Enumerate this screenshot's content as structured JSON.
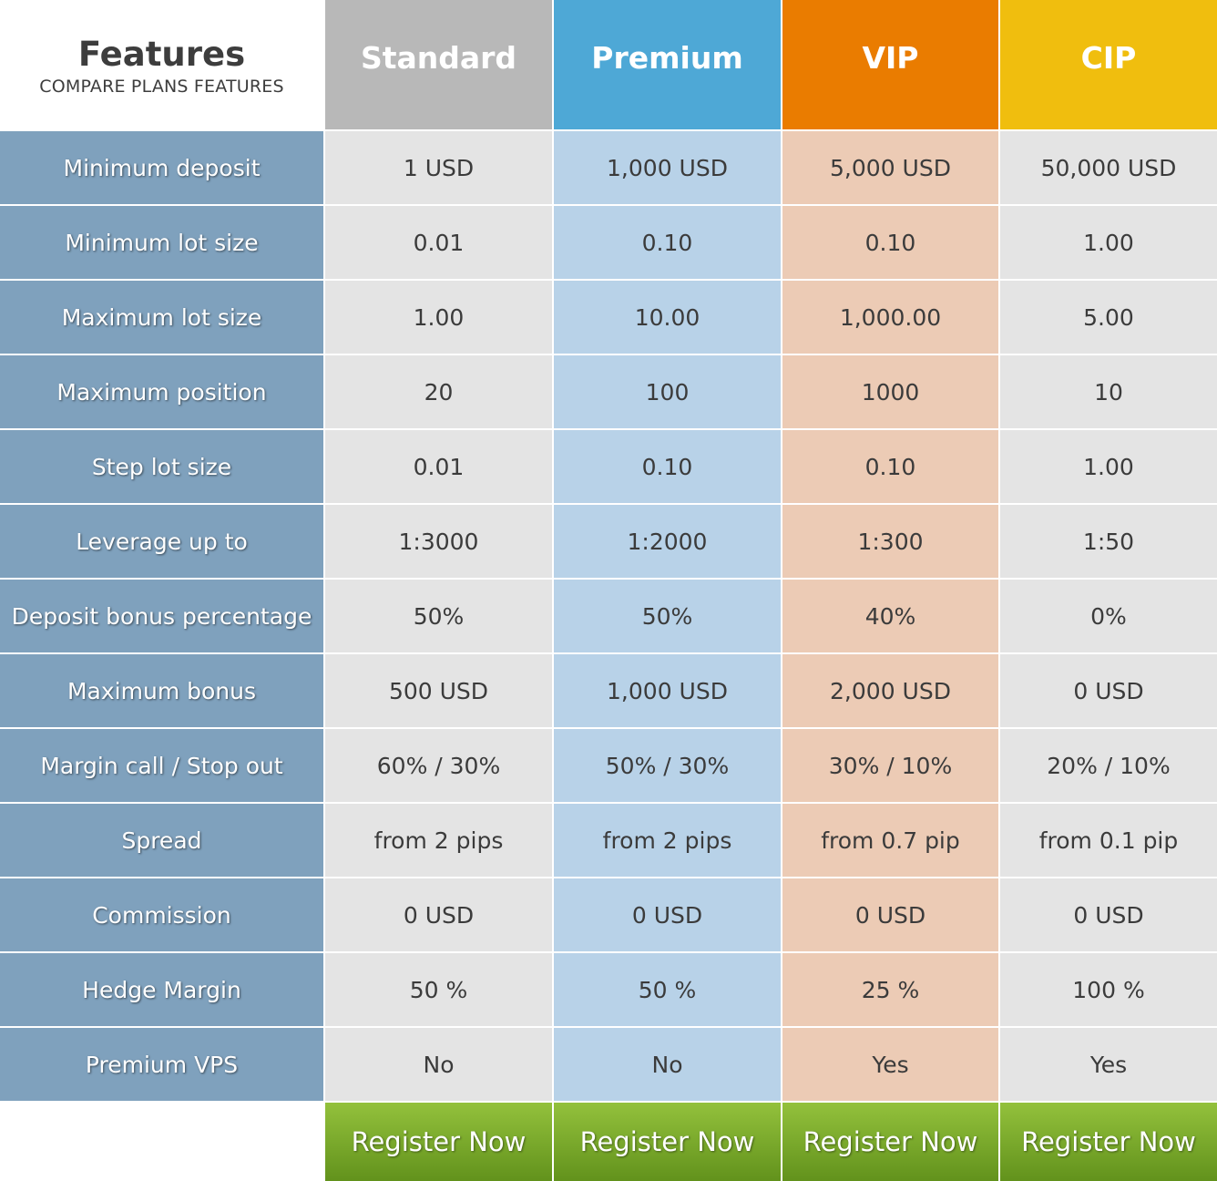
{
  "header": {
    "title": "Features",
    "subtitle": "COMPARE PLANS FEATURES",
    "plans": [
      "Standard",
      "Premium",
      "VIP",
      "CIP"
    ]
  },
  "colors": {
    "standard": "#b8b8b8",
    "premium": "#4ea8d6",
    "vip": "#ea7c00",
    "cip": "#f0be0e",
    "feature_column": "#7fa1bd",
    "register_button": "#7aad2c"
  },
  "rows": [
    {
      "feature": "Minimum deposit",
      "values": [
        "1 USD",
        "1,000 USD",
        "5,000 USD",
        "50,000 USD"
      ]
    },
    {
      "feature": "Minimum lot size",
      "values": [
        "0.01",
        "0.10",
        "0.10",
        "1.00"
      ]
    },
    {
      "feature": "Maximum lot size",
      "values": [
        "1.00",
        "10.00",
        "1,000.00",
        "5.00"
      ]
    },
    {
      "feature": "Maximum position",
      "values": [
        "20",
        "100",
        "1000",
        "10"
      ]
    },
    {
      "feature": "Step lot size",
      "values": [
        "0.01",
        "0.10",
        "0.10",
        "1.00"
      ]
    },
    {
      "feature": "Leverage up to",
      "values": [
        "1:3000",
        "1:2000",
        "1:300",
        "1:50"
      ]
    },
    {
      "feature": "Deposit bonus percentage",
      "values": [
        "50%",
        "50%",
        "40%",
        "0%"
      ]
    },
    {
      "feature": "Maximum bonus",
      "values": [
        "500 USD",
        "1,000 USD",
        "2,000 USD",
        "0 USD"
      ]
    },
    {
      "feature": "Margin call / Stop out",
      "values": [
        "60% / 30%",
        "50% / 30%",
        "30% / 10%",
        "20% / 10%"
      ]
    },
    {
      "feature": "Spread",
      "values": [
        "from 2 pips",
        "from 2 pips",
        "from 0.7 pip",
        "from 0.1 pip"
      ]
    },
    {
      "feature": "Commission",
      "values": [
        "0 USD",
        "0 USD",
        "0 USD",
        "0 USD"
      ]
    },
    {
      "feature": "Hedge Margin",
      "values": [
        "50 %",
        "50 %",
        "25 %",
        "100 %"
      ]
    },
    {
      "feature": "Premium VPS",
      "values": [
        "No",
        "No",
        "Yes",
        "Yes"
      ]
    }
  ],
  "register_buttons": [
    "Register Now",
    "Register Now",
    "Register Now",
    "Register Now"
  ]
}
